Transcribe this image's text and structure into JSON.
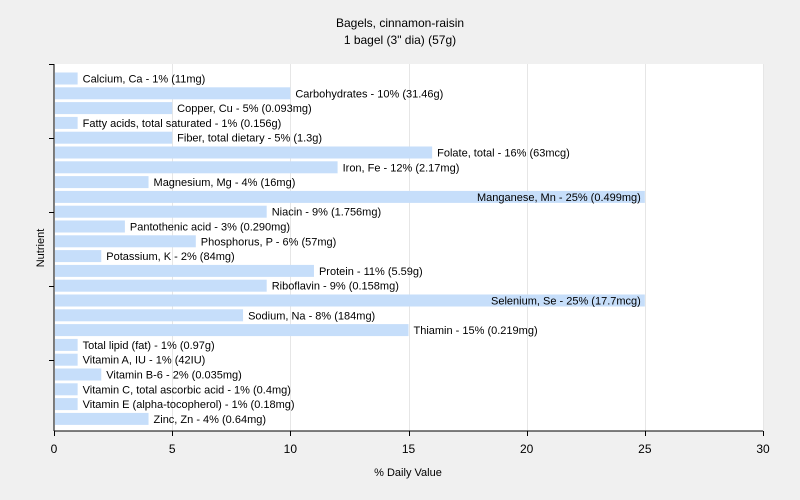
{
  "chart_data": {
    "type": "bar",
    "orientation": "horizontal",
    "title": "Bagels, cinnamon-raisin",
    "subtitle": "1 bagel (3\" dia) (57g)",
    "xlabel": "% Daily Value",
    "ylabel": "Nutrient",
    "xlim": [
      0,
      30
    ],
    "xticks": [
      0,
      5,
      10,
      15,
      20,
      25,
      30
    ],
    "grid": true,
    "bar_color": "#c6defa",
    "categories": [
      "Calcium, Ca",
      "Carbohydrates",
      "Copper, Cu",
      "Fatty acids, total saturated",
      "Fiber, total dietary",
      "Folate, total",
      "Iron, Fe",
      "Magnesium, Mg",
      "Manganese, Mn",
      "Niacin",
      "Pantothenic acid",
      "Phosphorus, P",
      "Potassium, K",
      "Protein",
      "Riboflavin",
      "Selenium, Se",
      "Sodium, Na",
      "Thiamin",
      "Total lipid (fat)",
      "Vitamin A, IU",
      "Vitamin B-6",
      "Vitamin C, total ascorbic acid",
      "Vitamin E (alpha-tocopherol)",
      "Zinc, Zn"
    ],
    "values": [
      1,
      10,
      5,
      1,
      5,
      16,
      12,
      4,
      25,
      9,
      3,
      6,
      2,
      11,
      9,
      25,
      8,
      15,
      1,
      1,
      2,
      1,
      1,
      4
    ],
    "labels": [
      "Calcium, Ca - 1% (11mg)",
      "Carbohydrates - 10% (31.46g)",
      "Copper, Cu - 5% (0.093mg)",
      "Fatty acids, total saturated - 1% (0.156g)",
      "Fiber, total dietary - 5% (1.3g)",
      "Folate, total - 16% (63mcg)",
      "Iron, Fe - 12% (2.17mg)",
      "Magnesium, Mg - 4% (16mg)",
      "Manganese, Mn - 25% (0.499mg)",
      "Niacin - 9% (1.756mg)",
      "Pantothenic acid - 3% (0.290mg)",
      "Phosphorus, P - 6% (57mg)",
      "Potassium, K - 2% (84mg)",
      "Protein - 11% (5.59g)",
      "Riboflavin - 9% (0.158mg)",
      "Selenium, Se - 25% (17.7mcg)",
      "Sodium, Na - 8% (184mg)",
      "Thiamin - 15% (0.219mg)",
      "Total lipid (fat) - 1% (0.97g)",
      "Vitamin A, IU - 1% (42IU)",
      "Vitamin B-6 - 2% (0.035mg)",
      "Vitamin C, total ascorbic acid - 1% (0.4mg)",
      "Vitamin E (alpha-tocopherol) - 1% (0.18mg)",
      "Zinc, Zn - 4% (0.64mg)"
    ]
  }
}
